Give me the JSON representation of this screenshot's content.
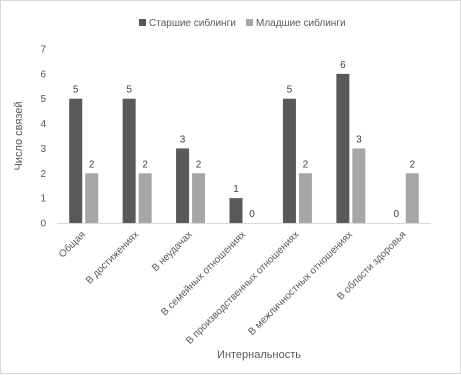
{
  "chart_data": {
    "type": "bar",
    "categories": [
      "Общая",
      "В достижениях",
      "В неудачах",
      "В семейных отношениях",
      "В производственных отношениях",
      "В межличностных отношениях",
      "В области здоровья"
    ],
    "series": [
      {
        "name": "Старшие сиблинги",
        "values": [
          5,
          5,
          3,
          1,
          5,
          6,
          0
        ],
        "color": "#595959"
      },
      {
        "name": "Младшие сиблинги",
        "values": [
          2,
          2,
          2,
          0,
          2,
          3,
          2
        ],
        "color": "#a6a6a6"
      }
    ],
    "title": "",
    "xlabel": "Интернальность",
    "ylabel": "Число связей",
    "ylim": [
      0,
      7
    ],
    "yticks": [
      0,
      1,
      2,
      3,
      4,
      5,
      6,
      7
    ],
    "legend": "top",
    "grid": false,
    "data_labels": true
  }
}
